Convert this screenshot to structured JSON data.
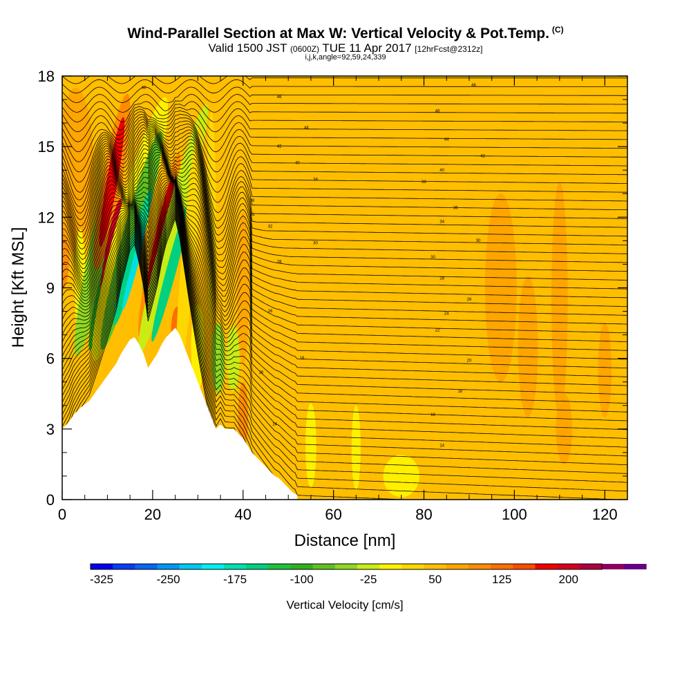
{
  "header": {
    "title": "Wind-Parallel Section at Max W: Vertical Velocity & Pot.Temp.",
    "title_tag": "(C)",
    "valid_prefix": "Valid 1500 JST",
    "valid_utc": "(0600Z)",
    "valid_date": "TUE 11 Apr 2017",
    "forecast": "[12hrFcst@2312z]",
    "indices": "i,j,k,angle=92,59,24,339"
  },
  "chart_data": {
    "type": "heatmap",
    "xlabel": "Distance [nm]",
    "ylabel": "Height [Kft MSL]",
    "xlim": [
      0,
      125
    ],
    "ylim": [
      0,
      18
    ],
    "x_ticks": [
      0,
      20,
      40,
      60,
      80,
      100,
      120
    ],
    "y_ticks": [
      0,
      3,
      6,
      9,
      12,
      15,
      18
    ],
    "x_tick_labels": [
      "0",
      "20",
      "40",
      "60",
      "80",
      "100",
      "120"
    ],
    "y_tick_labels": [
      "0",
      "3",
      "6",
      "9",
      "12",
      "15",
      "18"
    ],
    "colorbar": {
      "title": "Vertical Velocity [cm/s]",
      "min": -337.5,
      "max": 237.5,
      "step": 25,
      "tick_values": [
        -325,
        -250,
        -175,
        -100,
        -25,
        50,
        125,
        200
      ],
      "tick_labels": [
        "-325",
        "-250",
        "-175",
        "-100",
        "-25",
        "50",
        "125",
        "200"
      ],
      "colors": [
        "#0000f0",
        "#0a3cf5",
        "#0a64f5",
        "#0096f5",
        "#00c8f0",
        "#00f0f0",
        "#00e0b0",
        "#00d080",
        "#20c040",
        "#30b020",
        "#60c020",
        "#90d820",
        "#c8ec14",
        "#fff000",
        "#ffd700",
        "#ffbe00",
        "#ffa500",
        "#ff8c00",
        "#ff6e00",
        "#ff4b00",
        "#f00000",
        "#d7001e",
        "#b00040",
        "#8c0060",
        "#640082"
      ]
    },
    "terrain_profile": {
      "distance_nm": [
        0,
        1.5,
        2.5,
        4,
        6,
        7.5,
        9,
        10.5,
        12,
        13,
        14,
        15,
        16,
        17,
        18,
        19,
        20,
        21,
        22,
        23,
        24,
        25,
        26,
        27,
        28,
        29,
        30,
        31,
        32,
        33,
        34,
        35,
        36,
        37,
        38,
        39,
        40,
        41,
        42,
        43,
        44,
        45,
        46,
        47,
        48,
        49,
        50,
        51,
        52
      ],
      "height_kft": [
        3.0,
        3.3,
        3.6,
        3.9,
        4.2,
        4.6,
        5.0,
        5.4,
        5.8,
        6.2,
        6.5,
        6.8,
        6.9,
        6.6,
        6.2,
        5.6,
        5.9,
        6.2,
        6.6,
        6.9,
        7.1,
        7.3,
        7.0,
        6.5,
        6.0,
        5.5,
        5.0,
        4.5,
        4.0,
        3.5,
        3.0,
        3.2,
        3.0,
        3.0,
        3.0,
        2.8,
        2.6,
        2.3,
        2.0,
        1.8,
        1.6,
        1.4,
        1.2,
        1.0,
        0.9,
        0.7,
        0.5,
        0.3,
        0.2
      ]
    },
    "theta_contours": [
      {
        "label": "14",
        "x": 84,
        "y": 2.3
      },
      {
        "label": "14",
        "x": 47,
        "y": 3.2
      },
      {
        "label": "16",
        "x": 82,
        "y": 3.6
      },
      {
        "label": "16",
        "x": 44,
        "y": 5.4
      },
      {
        "label": "16",
        "x": 88,
        "y": 4.6
      },
      {
        "label": "18",
        "x": 53,
        "y": 6.0
      },
      {
        "label": "20",
        "x": 90,
        "y": 5.9
      },
      {
        "label": "22",
        "x": 83,
        "y": 7.2
      },
      {
        "label": "24",
        "x": 85,
        "y": 7.9
      },
      {
        "label": "26",
        "x": 46,
        "y": 8.0
      },
      {
        "label": "26",
        "x": 90,
        "y": 8.5
      },
      {
        "label": "28",
        "x": 84,
        "y": 9.4
      },
      {
        "label": "28",
        "x": 48,
        "y": 10.1
      },
      {
        "label": "30",
        "x": 82,
        "y": 10.3
      },
      {
        "label": "30",
        "x": 56,
        "y": 10.9
      },
      {
        "label": "30",
        "x": 92,
        "y": 11.0
      },
      {
        "label": "32",
        "x": 46,
        "y": 11.6
      },
      {
        "label": "34",
        "x": 84,
        "y": 11.8
      },
      {
        "label": "34",
        "x": 42,
        "y": 12.1
      },
      {
        "label": "36",
        "x": 87,
        "y": 12.4
      },
      {
        "label": "36",
        "x": 42,
        "y": 12.7
      },
      {
        "label": "38",
        "x": 80,
        "y": 13.5
      },
      {
        "label": "38",
        "x": 56,
        "y": 13.6
      },
      {
        "label": "40",
        "x": 84,
        "y": 14.0
      },
      {
        "label": "40",
        "x": 52,
        "y": 14.3
      },
      {
        "label": "42",
        "x": 48,
        "y": 15.0
      },
      {
        "label": "42",
        "x": 93,
        "y": 14.6
      },
      {
        "label": "44",
        "x": 85,
        "y": 15.3
      },
      {
        "label": "44",
        "x": 54,
        "y": 15.8
      },
      {
        "label": "46",
        "x": 83,
        "y": 16.5
      },
      {
        "label": "46",
        "x": 48,
        "y": 17.1
      },
      {
        "label": "46",
        "x": 91,
        "y": 17.6
      },
      {
        "label": "48",
        "x": 18,
        "y": 17.5
      }
    ]
  }
}
